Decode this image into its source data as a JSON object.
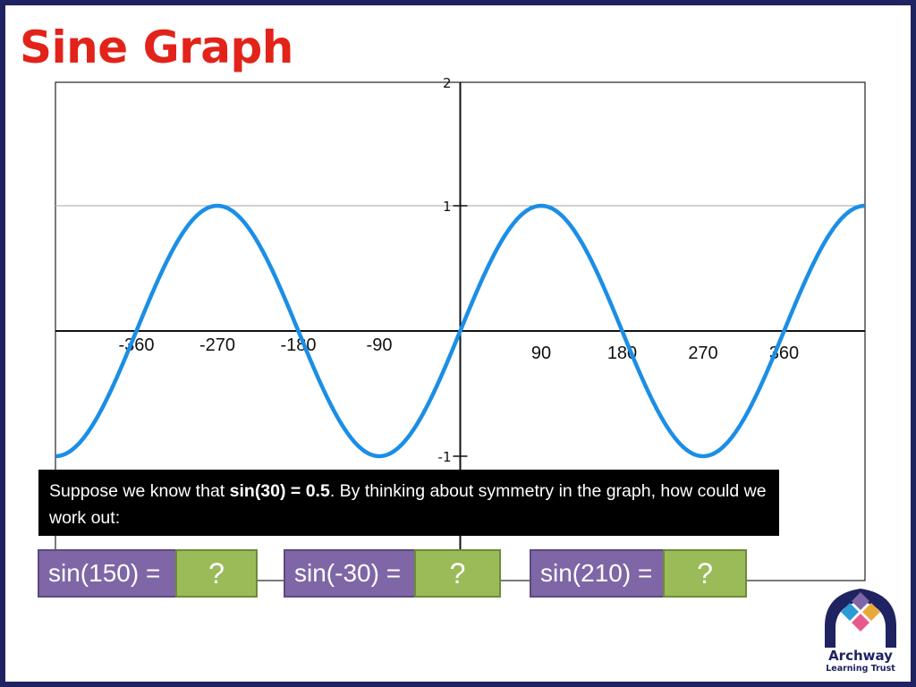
{
  "title": "Sine Graph",
  "chart_data": {
    "type": "line",
    "function": "sin(x)",
    "x_range": [
      -450,
      450
    ],
    "ylim": [
      -1,
      2
    ],
    "x_tick_labels": [
      {
        "x": -360,
        "label": "-360"
      },
      {
        "x": -270,
        "label": "-270"
      },
      {
        "x": -180,
        "label": "-180"
      },
      {
        "x": -90,
        "label": "-90"
      },
      {
        "x": 90,
        "label": "90"
      },
      {
        "x": 180,
        "label": "180"
      },
      {
        "x": 270,
        "label": "270"
      },
      {
        "x": 360,
        "label": "360"
      }
    ],
    "y_tick_labels": [
      {
        "y": 2,
        "label": "2"
      },
      {
        "y": 1,
        "label": "1"
      },
      {
        "y": -1,
        "label": "-1"
      }
    ],
    "grid": true,
    "series_color": "#1b8ee6"
  },
  "prompt": {
    "pre": "Suppose we know that ",
    "bold": "sin(30) = 0.5",
    "post": ". By thinking about symmetry in the graph, how could we work out:"
  },
  "questions": [
    {
      "label": "sin(150) =",
      "answer": "?"
    },
    {
      "label": "sin(-30) =",
      "answer": "?"
    },
    {
      "label": "sin(210) =",
      "answer": "?"
    }
  ],
  "logo": {
    "line1": "Archway",
    "line2": "Learning Trust"
  }
}
